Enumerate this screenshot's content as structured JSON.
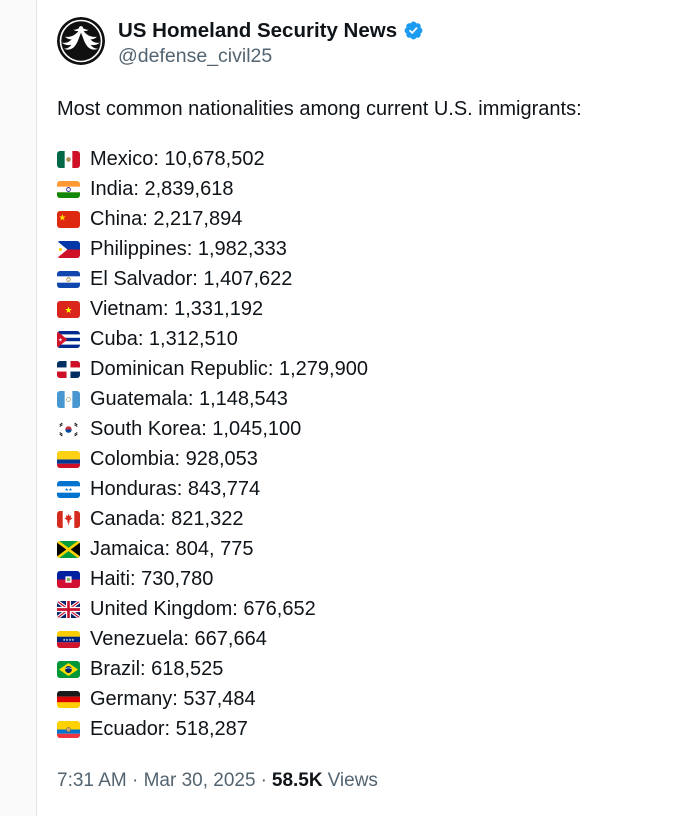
{
  "header": {
    "display_name": "US Homeland Security News",
    "handle": "@defense_civil25"
  },
  "tweet": {
    "text": "Most common nationalities among current U.S. immigrants:",
    "items": [
      {
        "code": "mx",
        "country": "Mexico",
        "value": "10,678,502",
        "text": "Mexico: 10,678,502"
      },
      {
        "code": "in",
        "country": "India",
        "value": "2,839,618",
        "text": "India: 2,839,618"
      },
      {
        "code": "cn",
        "country": "China",
        "value": "2,217,894",
        "text": "China: 2,217,894"
      },
      {
        "code": "ph",
        "country": "Philippines",
        "value": "1,982,333",
        "text": "Philippines: 1,982,333"
      },
      {
        "code": "sv",
        "country": "El Salvador",
        "value": "1,407,622",
        "text": "El Salvador: 1,407,622"
      },
      {
        "code": "vn",
        "country": "Vietnam",
        "value": "1,331,192",
        "text": "Vietnam: 1,331,192"
      },
      {
        "code": "cu",
        "country": "Cuba",
        "value": "1,312,510",
        "text": "Cuba: 1,312,510"
      },
      {
        "code": "do",
        "country": "Dominican Republic",
        "value": "1,279,900",
        "text": "Dominican Republic: 1,279,900"
      },
      {
        "code": "gt",
        "country": "Guatemala",
        "value": "1,148,543",
        "text": "Guatemala: 1,148,543"
      },
      {
        "code": "kr",
        "country": "South Korea",
        "value": "1,045,100",
        "text": "South Korea: 1,045,100"
      },
      {
        "code": "co",
        "country": "Colombia",
        "value": "928,053",
        "text": "Colombia: 928,053"
      },
      {
        "code": "hn",
        "country": "Honduras",
        "value": "843,774",
        "text": "Honduras: 843,774"
      },
      {
        "code": "ca",
        "country": "Canada",
        "value": "821,322",
        "text": "Canada: 821,322"
      },
      {
        "code": "jm",
        "country": "Jamaica",
        "value": "804, 775",
        "text": "Jamaica: 804, 775"
      },
      {
        "code": "ht",
        "country": "Haiti",
        "value": "730,780",
        "text": "Haiti: 730,780"
      },
      {
        "code": "gb",
        "country": "United Kingdom",
        "value": "676,652",
        "text": "United Kingdom: 676,652"
      },
      {
        "code": "ve",
        "country": "Venezuela",
        "value": "667,664",
        "text": "Venezuela: 667,664"
      },
      {
        "code": "br",
        "country": "Brazil",
        "value": "618,525",
        "text": "Brazil: 618,525"
      },
      {
        "code": "de",
        "country": "Germany",
        "value": "537,484",
        "text": "Germany: 537,484"
      },
      {
        "code": "ec",
        "country": "Ecuador",
        "value": "518,287",
        "text": "Ecuador: 518,287"
      }
    ]
  },
  "footer": {
    "timestamp": "7:31 AM · Mar 30, 2025",
    "separator": "·",
    "views_count": "58.5K",
    "views_label": "Views"
  },
  "colors": {
    "verified_blue": "#1d9bf0",
    "text_primary": "#0f1419",
    "text_secondary": "#536471"
  }
}
